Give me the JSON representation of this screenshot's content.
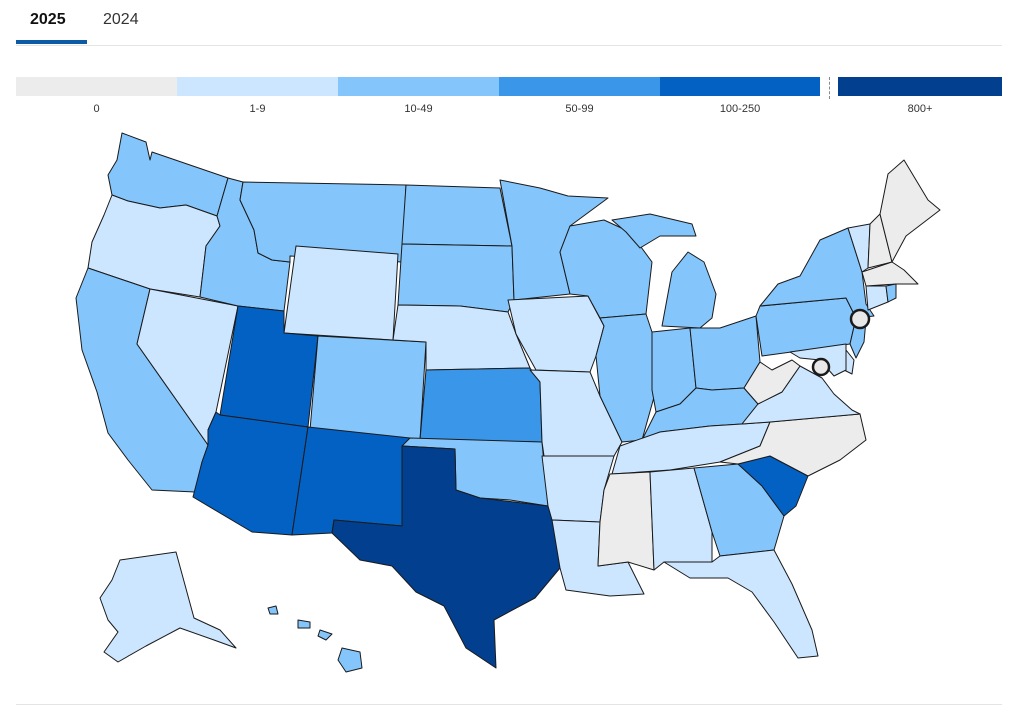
{
  "tabs": [
    {
      "label": "2025",
      "active": true
    },
    {
      "label": "2024",
      "active": false
    }
  ],
  "legend": [
    {
      "label": "0",
      "color": "#ececec"
    },
    {
      "label": "1-9",
      "color": "#cce6ff"
    },
    {
      "label": "10-49",
      "color": "#84c5fb"
    },
    {
      "label": "50-99",
      "color": "#3a96e8"
    },
    {
      "label": "100-250",
      "color": "#0461c4"
    },
    {
      "label": "800+",
      "color": "#02408f"
    }
  ],
  "map": {
    "states": {
      "WA": "10-49",
      "OR": "1-9",
      "CA": "10-49",
      "NV": "1-9",
      "ID": "10-49",
      "MT": "10-49",
      "WY": "1-9",
      "UT": "100-250",
      "AZ": "100-250",
      "CO": "10-49",
      "NM": "100-250",
      "ND": "10-49",
      "SD": "10-49",
      "NE": "1-9",
      "KS": "50-99",
      "OK": "10-49",
      "TX": "800+",
      "MN": "10-49",
      "IA": "1-9",
      "MO": "1-9",
      "AR": "1-9",
      "LA": "1-9",
      "WI": "10-49",
      "IL": "10-49",
      "MI": "10-49",
      "IN": "10-49",
      "OH": "10-49",
      "KY": "10-49",
      "TN": "1-9",
      "MS": "0",
      "AL": "1-9",
      "GA": "10-49",
      "FL": "1-9",
      "SC": "100-250",
      "NC": "0",
      "VA": "1-9",
      "WV": "0",
      "PA": "10-49",
      "NY": "10-49",
      "VT": "1-9",
      "NH": "0",
      "ME": "0",
      "MA": "0",
      "CT": "1-9",
      "RI": "10-49",
      "NJ": "10-49",
      "DE": "1-9",
      "MD": "1-9",
      "AK": "1-9",
      "HI": "10-49"
    },
    "markers": [
      "new-york-city",
      "washington-dc"
    ]
  }
}
